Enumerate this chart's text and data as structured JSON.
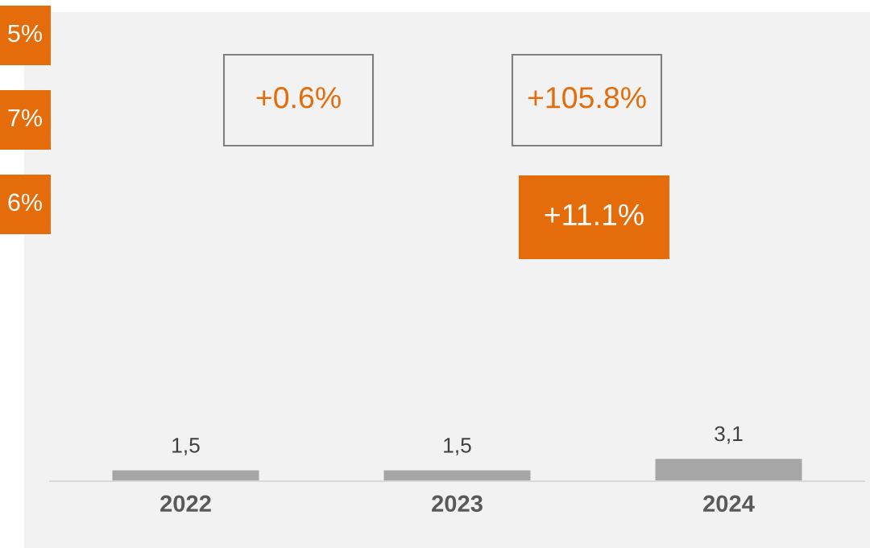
{
  "chart_data": {
    "type": "bar",
    "categories": [
      "2022",
      "2023",
      "2024"
    ],
    "values": [
      1.5,
      1.5,
      3.1
    ],
    "color": "#a6a6a6",
    "value_labels": [
      "1,5",
      "1,5",
      "3,1"
    ],
    "ylim": [
      0,
      65
    ],
    "tick_labels": "x",
    "grid": false,
    "legend": false,
    "annotations": [
      "5%",
      "7%",
      "6%",
      "+0.6%",
      "+105.8%",
      "+11.1%"
    ]
  }
}
